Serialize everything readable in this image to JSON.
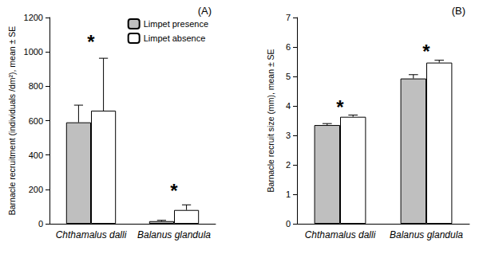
{
  "chart_data": [
    {
      "type": "bar",
      "title": "(A)",
      "y_label": "Barnacle recruitment (individuals /dm²), mean ± SE",
      "categories": [
        "Chthamalus dalli",
        "Balanus glandula"
      ],
      "series": [
        {
          "name": "Limpet presence",
          "color": "#bfbfbf",
          "values": [
            590,
            15
          ],
          "errors": [
            100,
            5
          ]
        },
        {
          "name": "Limpet absence",
          "color": "#ffffff",
          "values": [
            658,
            80
          ],
          "errors": [
            305,
            30
          ]
        }
      ],
      "ylim": [
        0,
        1200
      ],
      "yticks": [
        0,
        200,
        400,
        600,
        800,
        1000,
        1200
      ],
      "legend": "upper right",
      "annotations": [
        {
          "text": "*",
          "category": "Chthamalus dalli",
          "y": 1060
        },
        {
          "text": "*",
          "category": "Balanus glandula",
          "y": 190
        }
      ]
    },
    {
      "type": "bar",
      "title": "(B)",
      "y_label": "Barnacle recruit size (mm), mean ± SE",
      "categories": [
        "Chthamalus dalli",
        "Balanus glandula"
      ],
      "series": [
        {
          "name": "Limpet presence",
          "color": "#bfbfbf",
          "values": [
            3.35,
            4.93
          ],
          "errors": [
            0.05,
            0.13
          ]
        },
        {
          "name": "Limpet absence",
          "color": "#ffffff",
          "values": [
            3.63,
            5.47
          ],
          "errors": [
            0.06,
            0.08
          ]
        }
      ],
      "ylim": [
        0,
        7
      ],
      "yticks": [
        0,
        1,
        2,
        3,
        4,
        5,
        6,
        7
      ],
      "annotations": [
        {
          "text": "*",
          "category": "Chthamalus dalli",
          "y": 3.95
        },
        {
          "text": "*",
          "category": "Balanus glandula",
          "y": 5.85
        }
      ]
    }
  ]
}
